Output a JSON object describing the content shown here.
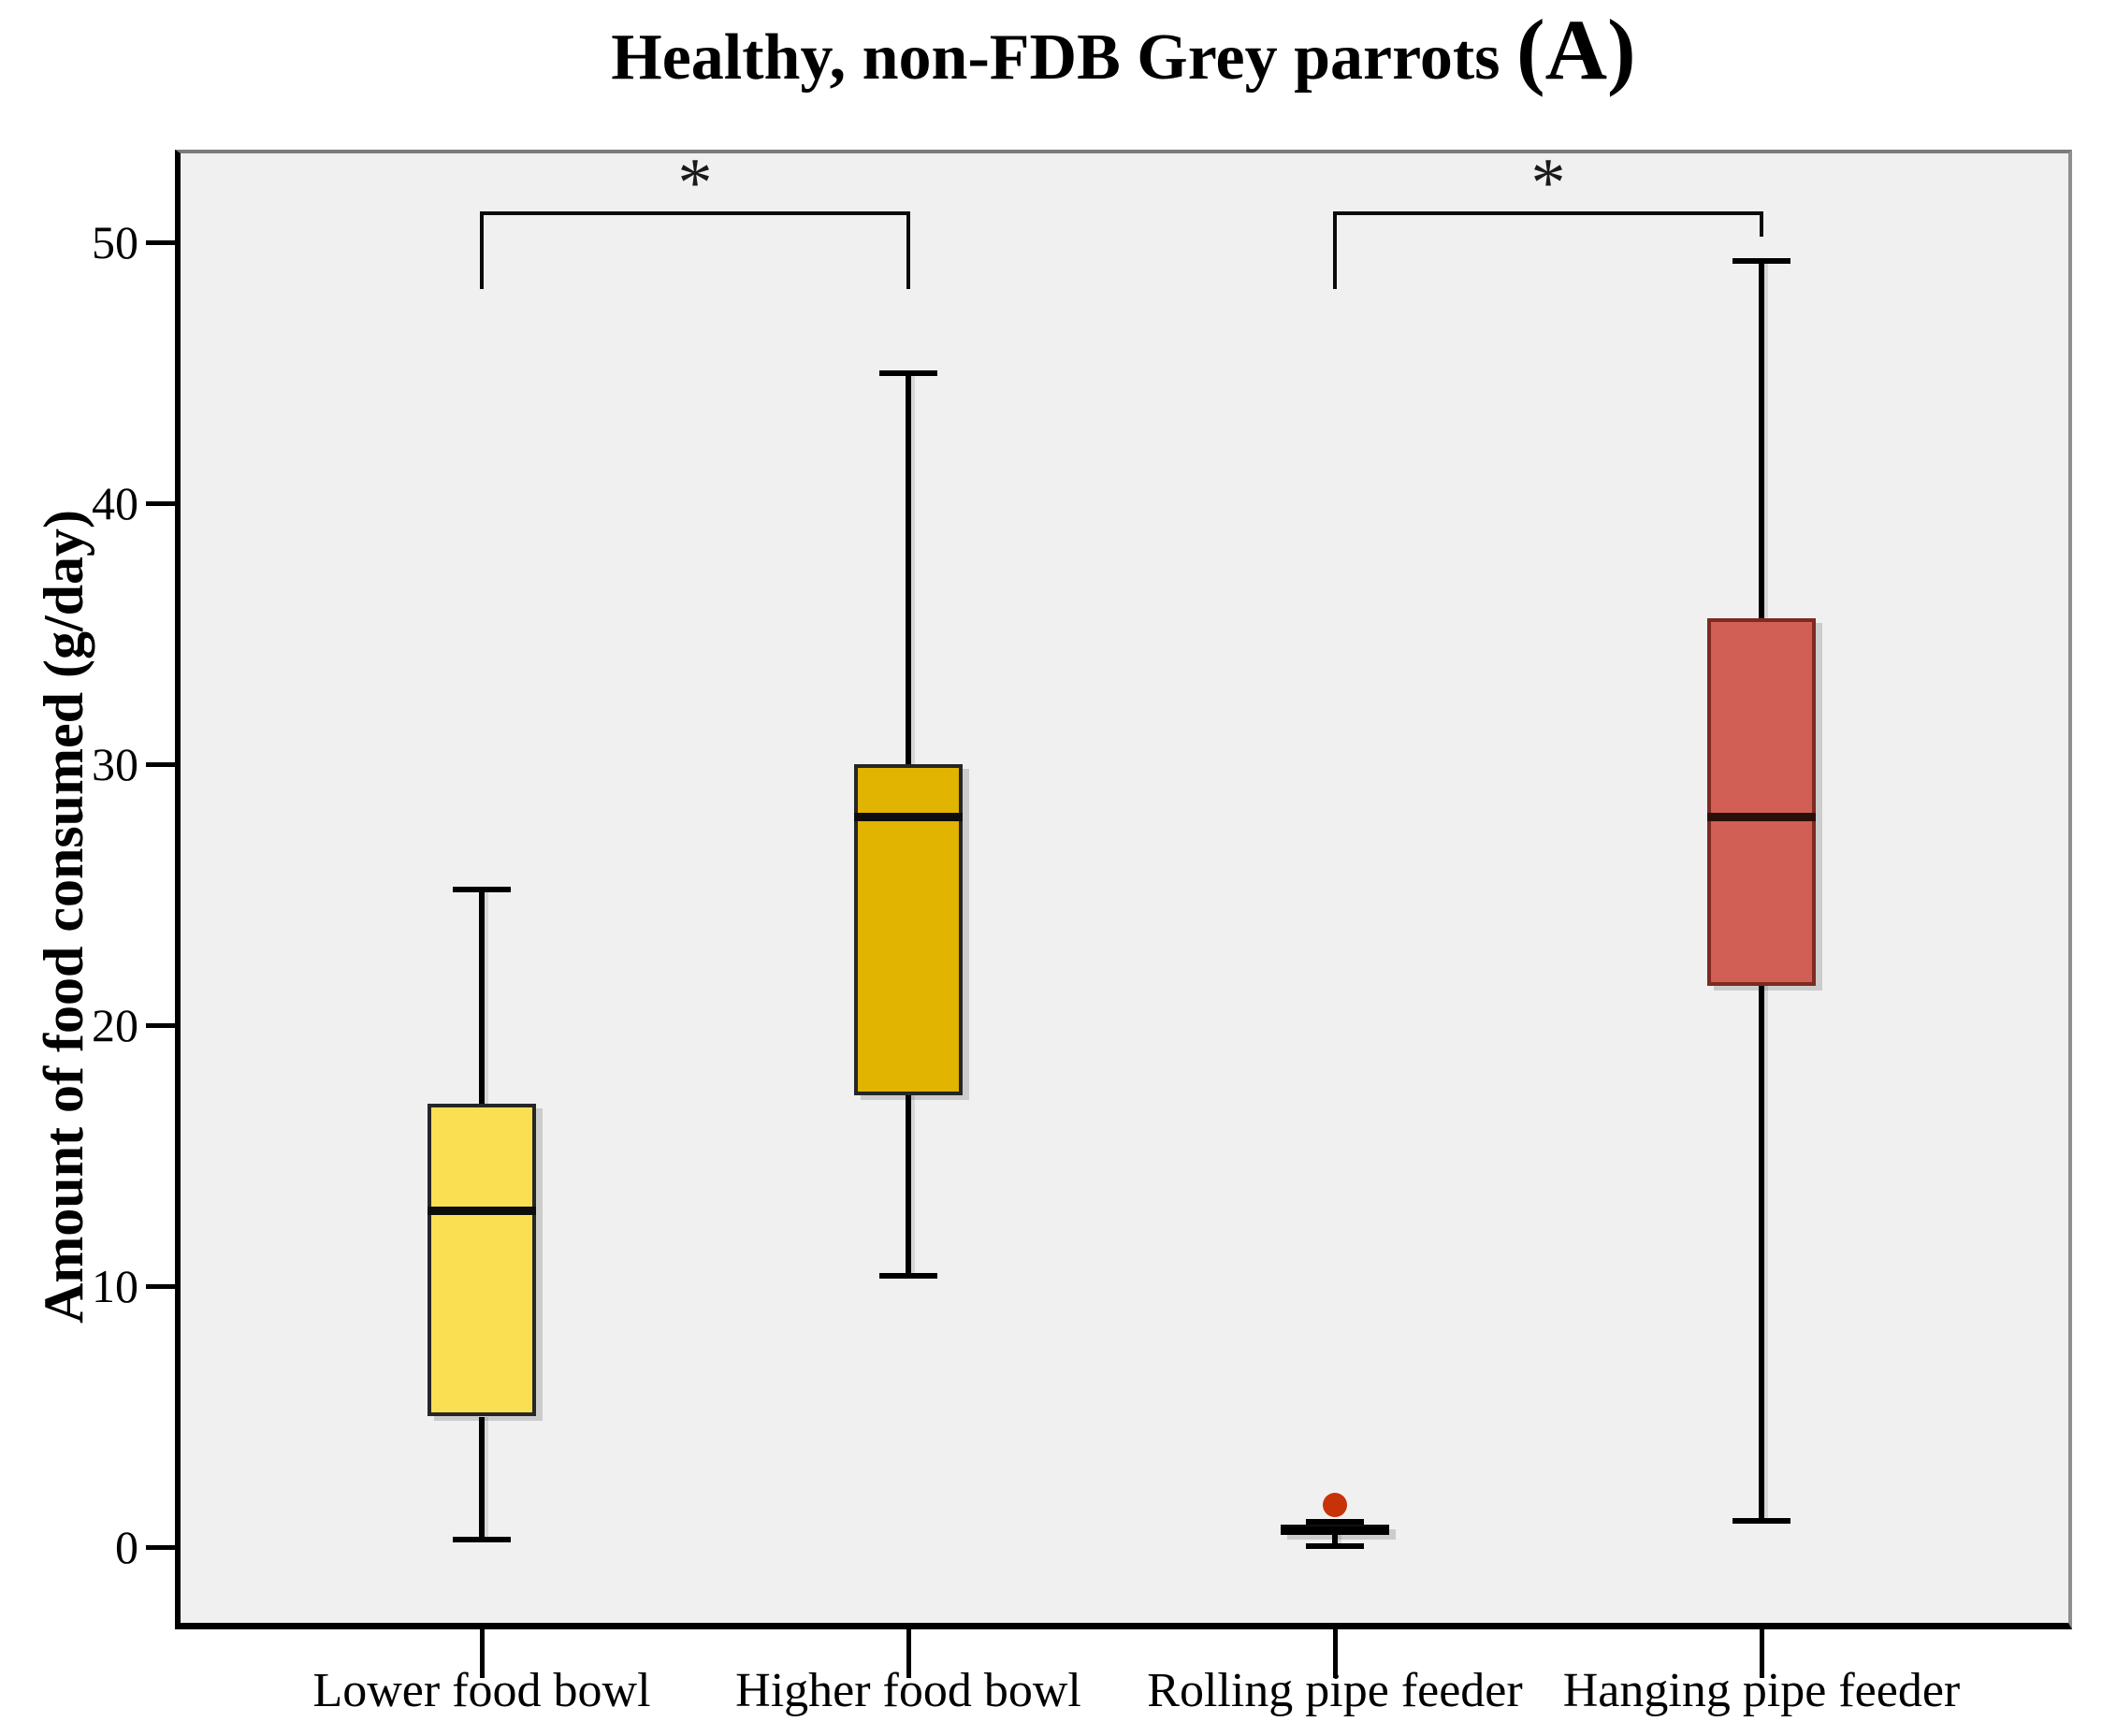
{
  "title": {
    "main": "Healthy, non-FDB Grey parrots ",
    "annotation": "(A)"
  },
  "y_axis": {
    "label": "Amount of food consumed (g/day)",
    "ticks": [
      0,
      10,
      20,
      30,
      40,
      50
    ],
    "range": [
      -3,
      53.5
    ]
  },
  "x_axis": {
    "categories": [
      "Lower food bowl",
      "Higher food bowl",
      "Rolling pipe feeder",
      "Hanging pipe feeder"
    ]
  },
  "chart_data": {
    "type": "box",
    "title": "Healthy, non-FDB Grey parrots (A)",
    "ylabel": "Amount of food consumed (g/day)",
    "ylim": [
      -3,
      53.5
    ],
    "grid": false,
    "plot_background": "#F0F0F0",
    "categories": [
      "Lower food bowl",
      "Higher food bowl",
      "Rolling pipe feeder",
      "Hanging pipe feeder"
    ],
    "series": [
      {
        "name": "Lower food bowl",
        "min": 0.3,
        "q1": 5.0,
        "median": 12.9,
        "q3": 17.0,
        "max": 25.2,
        "outliers": [],
        "fill": "#FBDF53",
        "border": "#262626",
        "median_color": "#0d0d0d"
      },
      {
        "name": "Higher food bowl",
        "min": 10.4,
        "q1": 17.3,
        "median": 28.0,
        "q3": 30.0,
        "max": 45.0,
        "outliers": [],
        "fill": "#E0B400",
        "border": "#262626",
        "median_color": "#0d0d0d"
      },
      {
        "name": "Rolling pipe feeder",
        "min": 0.05,
        "q1": 0.45,
        "median": 0.65,
        "q3": 0.85,
        "max": 0.95,
        "outliers": [
          1.6
        ],
        "fill": "#111111",
        "border": "#111111",
        "median_color": "#000000"
      },
      {
        "name": "Hanging pipe feeder",
        "min": 1.0,
        "q1": 21.5,
        "median": 28.0,
        "q3": 35.6,
        "max": 49.3,
        "outliers": [],
        "fill": "#D15F55",
        "border": "#7E2A20",
        "median_color": "#2B0F0A"
      }
    ],
    "outlier_color": "#C83209",
    "significance": [
      {
        "from_index": 0,
        "to_index": 1,
        "label": "*",
        "bar_value": 51.2,
        "drop_from_value": 48.2,
        "drop_to_value": 48.2
      },
      {
        "from_index": 2,
        "to_index": 3,
        "label": "*",
        "bar_value": 51.2,
        "drop_from_value": 48.2,
        "drop_to_value": 50.2
      }
    ]
  }
}
